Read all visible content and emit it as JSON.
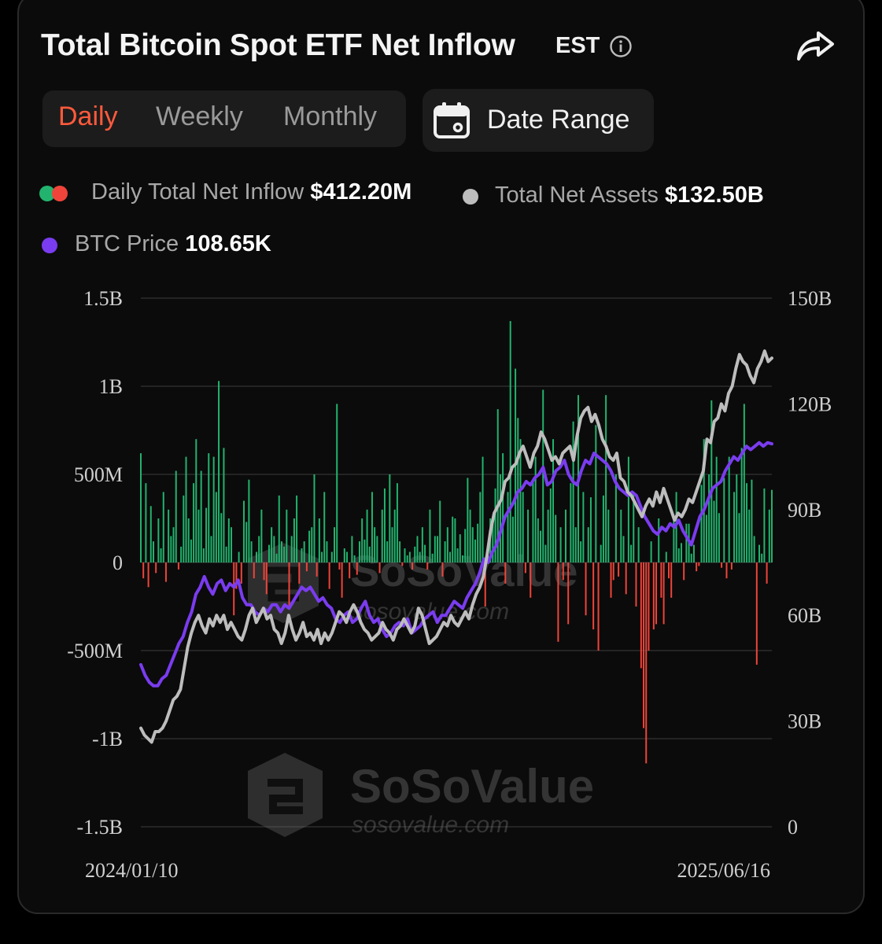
{
  "header": {
    "title": "Total Bitcoin Spot ETF Net Inflow",
    "timezone": "EST"
  },
  "tabs": [
    {
      "label": "Daily",
      "active": true
    },
    {
      "label": "Weekly",
      "active": false
    },
    {
      "label": "Monthly",
      "active": false
    }
  ],
  "date_range_label": "Date Range",
  "legend": {
    "inflow_label": "Daily Total Net Inflow",
    "inflow_value": "$412.20M",
    "assets_label": "Total Net Assets",
    "assets_value": "$132.50B",
    "price_label": "BTC Price",
    "price_value": "108.65K"
  },
  "colors": {
    "positive": "#22b46e",
    "negative": "#f0443a",
    "assets_line": "#bdbdbd",
    "price_line": "#7a3cf0",
    "accent": "#ff5a3c"
  },
  "watermark": {
    "brand": "SoSoValue",
    "url": "sosovalue.com"
  },
  "chart_data": {
    "type": "bar",
    "x_start": "2024/01/10",
    "x_end": "2025/06/16",
    "left_axis": {
      "ticks": [
        "1.5B",
        "1B",
        "500M",
        "0",
        "-500M",
        "-1B",
        "-1.5B"
      ],
      "ylim": [
        -1500,
        1500
      ],
      "unit": "M USD"
    },
    "right_axis": {
      "ticks": [
        "150B",
        "120B",
        "90B",
        "60B",
        "30B",
        "0"
      ],
      "ylim": [
        0,
        150
      ],
      "unit": "B USD"
    },
    "grid": true,
    "series": [
      {
        "name": "Daily Total Net Inflow",
        "kind": "bar",
        "axis": "left",
        "values": [
          620,
          -90,
          450,
          -140,
          320,
          120,
          -60,
          250,
          80,
          400,
          -110,
          300,
          150,
          200,
          520,
          -40,
          90,
          380,
          600,
          250,
          130,
          450,
          700,
          300,
          520,
          80,
          310,
          620,
          150,
          600,
          400,
          1030,
          280,
          650,
          90,
          250,
          200,
          -300,
          -150,
          60,
          -120,
          350,
          230,
          470,
          120,
          -90,
          60,
          150,
          300,
          -100,
          -180,
          100,
          200,
          150,
          50,
          380,
          120,
          90,
          300,
          -250,
          150,
          250,
          380,
          -120,
          80,
          120,
          -50,
          180,
          200,
          500,
          -80,
          250,
          60,
          400,
          120,
          -150,
          60,
          200,
          900,
          -40,
          -200,
          80,
          60,
          -90,
          150,
          40,
          -70,
          120,
          250,
          130,
          300,
          90,
          400,
          200,
          150,
          -60,
          300,
          420,
          120,
          500,
          200,
          300,
          450,
          120,
          -20,
          80,
          40,
          60,
          -40,
          90,
          150,
          60,
          200,
          100,
          -40,
          300,
          50,
          150,
          150,
          350,
          -80,
          120,
          200,
          60,
          260,
          250,
          80,
          160,
          40,
          190,
          480,
          300,
          200,
          130,
          220,
          400,
          600,
          -250,
          100,
          250,
          250,
          420,
          870,
          500,
          620,
          -120,
          400,
          1370,
          260,
          1100,
          820,
          700,
          400,
          -60,
          300,
          -200,
          460,
          600,
          250,
          180,
          980,
          100,
          300,
          420,
          700,
          270,
          -450,
          200,
          -100,
          300,
          -350,
          450,
          800,
          200,
          950,
          120,
          400,
          -300,
          200,
          370,
          -380,
          780,
          -500,
          100,
          380,
          950,
          300,
          -200,
          -100,
          500,
          -80,
          300,
          150,
          -180,
          600,
          100,
          400,
          -250,
          200,
          -600,
          -940,
          -1140,
          -500,
          120,
          -380,
          -350,
          250,
          -200,
          -350,
          60,
          -90,
          -200,
          270,
          400,
          80,
          110,
          -100,
          220,
          220,
          50,
          100,
          -50,
          -20,
          440,
          700,
          270,
          500,
          920,
          350,
          600,
          280,
          -30,
          480,
          -90,
          600,
          -40,
          400,
          500,
          280,
          650,
          900,
          450,
          300,
          470,
          150,
          -580,
          100,
          50,
          420,
          -120,
          300,
          412
        ]
      },
      {
        "name": "Total Net Assets",
        "kind": "line",
        "axis": "right",
        "values": [
          28,
          26,
          25,
          24,
          27,
          27,
          28,
          30,
          33,
          36,
          37,
          39,
          45,
          51,
          55,
          58,
          60,
          57,
          55,
          59,
          57,
          60,
          58,
          60,
          56,
          58,
          56,
          54,
          53,
          56,
          60,
          62,
          58,
          60,
          62,
          59,
          60,
          56,
          55,
          52,
          55,
          60,
          56,
          53,
          55,
          58,
          54,
          55,
          53,
          56,
          52,
          55,
          53,
          55,
          58,
          61,
          60,
          58,
          61,
          63,
          61,
          58,
          56,
          55,
          53,
          54,
          55,
          58,
          56,
          55,
          53,
          56,
          57,
          59,
          57,
          55,
          57,
          62,
          60,
          56,
          52,
          53,
          54,
          56,
          58,
          57,
          60,
          58,
          57,
          59,
          61,
          59,
          63,
          66,
          68,
          71,
          77,
          84,
          89,
          91,
          93,
          98,
          99,
          102,
          103,
          106,
          108,
          105,
          102,
          106,
          108,
          112,
          110,
          107,
          104,
          105,
          103,
          106,
          107,
          108,
          104,
          111,
          116,
          118,
          119,
          115,
          117,
          114,
          110,
          108,
          105,
          104,
          106,
          99,
          98,
          95,
          94,
          92,
          90,
          88,
          91,
          93,
          91,
          95,
          92,
          96,
          93,
          90,
          87,
          89,
          88,
          90,
          93,
          92,
          95,
          98,
          101,
          110,
          109,
          115,
          116,
          120,
          118,
          123,
          125,
          130,
          134,
          132,
          131,
          128,
          126,
          130,
          132,
          135,
          132,
          133
        ]
      },
      {
        "name": "BTC Price",
        "kind": "line",
        "axis": "right",
        "scale": "not labeled",
        "values": [
          46,
          43,
          41,
          40,
          40,
          42,
          43,
          46,
          49,
          52,
          54,
          58,
          61,
          66,
          68,
          71,
          68,
          66,
          69,
          70,
          67,
          69,
          68,
          70,
          65,
          63,
          63,
          61,
          60,
          62,
          61,
          63,
          63,
          61,
          63,
          62,
          64,
          66,
          68,
          67,
          68,
          66,
          64,
          65,
          63,
          62,
          59,
          58,
          60,
          61,
          58,
          59,
          62,
          64,
          60,
          58,
          59,
          56,
          54,
          55,
          57,
          58,
          57,
          59,
          55,
          56,
          57,
          59,
          60,
          61,
          58,
          60,
          60,
          62,
          64,
          63,
          62,
          65,
          67,
          69,
          72,
          76,
          75,
          78,
          80,
          84,
          88,
          90,
          92,
          95,
          96,
          98,
          97,
          99,
          100,
          102,
          97,
          98,
          101,
          102,
          104,
          100,
          98,
          97,
          101,
          104,
          103,
          106,
          105,
          104,
          103,
          101,
          98,
          96,
          95,
          94,
          95,
          94,
          91,
          88,
          86,
          84,
          83,
          85,
          84,
          86,
          85,
          87,
          84,
          82,
          80,
          84,
          88,
          90,
          93,
          96,
          97,
          98,
          101,
          103,
          105,
          104,
          106,
          108,
          107,
          108,
          109,
          108,
          109,
          108.65
        ]
      }
    ]
  }
}
